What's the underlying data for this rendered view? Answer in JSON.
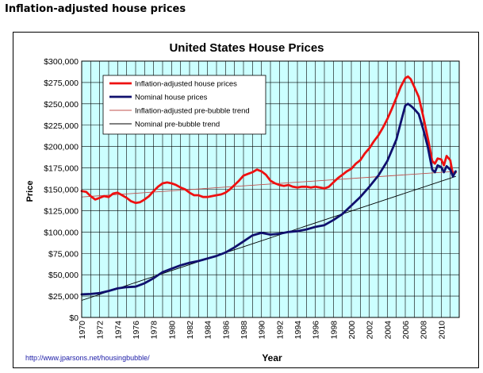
{
  "page": {
    "header": "Inflation-adjusted house prices",
    "source_link": "http://www.jparsons.net/housingbubble/"
  },
  "chart_data": {
    "type": "line",
    "title": "United States House Prices",
    "xlabel": "Year",
    "ylabel": "Price",
    "xlim": [
      1970,
      2012
    ],
    "ylim": [
      0,
      300000
    ],
    "x_ticks": [
      1970,
      1972,
      1974,
      1976,
      1978,
      1980,
      1982,
      1984,
      1986,
      1988,
      1990,
      1992,
      1994,
      1996,
      1998,
      2000,
      2002,
      2004,
      2006,
      2008,
      2010
    ],
    "y_ticks": [
      0,
      25000,
      50000,
      75000,
      100000,
      125000,
      150000,
      175000,
      200000,
      225000,
      250000,
      275000,
      300000
    ],
    "y_tick_labels": [
      "$0",
      "$25,000",
      "$50,000",
      "$75,000",
      "$100,000",
      "$125,000",
      "$150,000",
      "$175,000",
      "$200,000",
      "$225,000",
      "$250,000",
      "$275,000",
      "$300,000"
    ],
    "grid": true,
    "plot_background": "#ccffff",
    "legend_position": "top-left",
    "series": [
      {
        "name": "Inflation-adjusted house prices",
        "color": "#ee1111",
        "style": "thick",
        "points": [
          [
            1970,
            148000
          ],
          [
            1970.5,
            147000
          ],
          [
            1971,
            142000
          ],
          [
            1971.5,
            138000
          ],
          [
            1972,
            140000
          ],
          [
            1972.5,
            142000
          ],
          [
            1973,
            141000
          ],
          [
            1973.5,
            145000
          ],
          [
            1974,
            146000
          ],
          [
            1974.5,
            143000
          ],
          [
            1975,
            140000
          ],
          [
            1975.5,
            136000
          ],
          [
            1976,
            134000
          ],
          [
            1976.5,
            135000
          ],
          [
            1977,
            138000
          ],
          [
            1977.5,
            142000
          ],
          [
            1978,
            148000
          ],
          [
            1978.5,
            153000
          ],
          [
            1979,
            157000
          ],
          [
            1979.5,
            158000
          ],
          [
            1980,
            157000
          ],
          [
            1980.5,
            155000
          ],
          [
            1981,
            152000
          ],
          [
            1981.5,
            150000
          ],
          [
            1982,
            146000
          ],
          [
            1982.5,
            143000
          ],
          [
            1983,
            143000
          ],
          [
            1983.5,
            141000
          ],
          [
            1984,
            141000
          ],
          [
            1984.5,
            142000
          ],
          [
            1985,
            143000
          ],
          [
            1985.5,
            144000
          ],
          [
            1986,
            146000
          ],
          [
            1986.5,
            150000
          ],
          [
            1987,
            155000
          ],
          [
            1987.5,
            160000
          ],
          [
            1988,
            166000
          ],
          [
            1988.5,
            168000
          ],
          [
            1989,
            170000
          ],
          [
            1989.5,
            173000
          ],
          [
            1990,
            171000
          ],
          [
            1990.5,
            167000
          ],
          [
            1991,
            160000
          ],
          [
            1991.5,
            157000
          ],
          [
            1992,
            155000
          ],
          [
            1992.5,
            154000
          ],
          [
            1993,
            155000
          ],
          [
            1993.5,
            153000
          ],
          [
            1994,
            152000
          ],
          [
            1994.5,
            153000
          ],
          [
            1995,
            153000
          ],
          [
            1995.5,
            152000
          ],
          [
            1996,
            153000
          ],
          [
            1996.5,
            152000
          ],
          [
            1997,
            151000
          ],
          [
            1997.5,
            153000
          ],
          [
            1998,
            158000
          ],
          [
            1998.5,
            163000
          ],
          [
            1999,
            167000
          ],
          [
            1999.5,
            171000
          ],
          [
            2000,
            174000
          ],
          [
            2000.5,
            180000
          ],
          [
            2001,
            184000
          ],
          [
            2001.5,
            192000
          ],
          [
            2002,
            198000
          ],
          [
            2002.5,
            206000
          ],
          [
            2003,
            213000
          ],
          [
            2003.5,
            222000
          ],
          [
            2004,
            232000
          ],
          [
            2004.5,
            244000
          ],
          [
            2005,
            257000
          ],
          [
            2005.5,
            270000
          ],
          [
            2006,
            280000
          ],
          [
            2006.3,
            282000
          ],
          [
            2006.6,
            279000
          ],
          [
            2007,
            270000
          ],
          [
            2007.5,
            258000
          ],
          [
            2008,
            235000
          ],
          [
            2008.3,
            220000
          ],
          [
            2008.6,
            205000
          ],
          [
            2009,
            183000
          ],
          [
            2009.3,
            180000
          ],
          [
            2009.6,
            186000
          ],
          [
            2010,
            185000
          ],
          [
            2010.3,
            178000
          ],
          [
            2010.6,
            189000
          ],
          [
            2011,
            184000
          ],
          [
            2011.3,
            167000
          ],
          [
            2011.6,
            170000
          ]
        ]
      },
      {
        "name": "Nominal house prices",
        "color": "#10106e",
        "style": "thick",
        "points": [
          [
            1970,
            27000
          ],
          [
            1971,
            27500
          ],
          [
            1972,
            28500
          ],
          [
            1973,
            31000
          ],
          [
            1974,
            34000
          ],
          [
            1975,
            35500
          ],
          [
            1976,
            36000
          ],
          [
            1977,
            40000
          ],
          [
            1978,
            46000
          ],
          [
            1979,
            53000
          ],
          [
            1980,
            57000
          ],
          [
            1981,
            61000
          ],
          [
            1982,
            64000
          ],
          [
            1983,
            66000
          ],
          [
            1984,
            69000
          ],
          [
            1985,
            72000
          ],
          [
            1986,
            76000
          ],
          [
            1987,
            82000
          ],
          [
            1988,
            89000
          ],
          [
            1989,
            96000
          ],
          [
            1990,
            99000
          ],
          [
            1991,
            97000
          ],
          [
            1992,
            98000
          ],
          [
            1993,
            100000
          ],
          [
            1994,
            101000
          ],
          [
            1995,
            103000
          ],
          [
            1996,
            106000
          ],
          [
            1997,
            108000
          ],
          [
            1998,
            114000
          ],
          [
            1999,
            121000
          ],
          [
            2000,
            131000
          ],
          [
            2001,
            141000
          ],
          [
            2002,
            153000
          ],
          [
            2003,
            166000
          ],
          [
            2004,
            183000
          ],
          [
            2005,
            208000
          ],
          [
            2005.5,
            228000
          ],
          [
            2006,
            248000
          ],
          [
            2006.3,
            250000
          ],
          [
            2006.7,
            247000
          ],
          [
            2007,
            244000
          ],
          [
            2007.5,
            238000
          ],
          [
            2008,
            220000
          ],
          [
            2008.5,
            200000
          ],
          [
            2009,
            173000
          ],
          [
            2009.3,
            170000
          ],
          [
            2009.6,
            178000
          ],
          [
            2010,
            176000
          ],
          [
            2010.3,
            170000
          ],
          [
            2010.6,
            177000
          ],
          [
            2011,
            173000
          ],
          [
            2011.3,
            165000
          ],
          [
            2011.6,
            171000
          ]
        ]
      },
      {
        "name": "Inflation-adjusted pre-bubble trend",
        "color": "#c0504d",
        "style": "thin",
        "points": [
          [
            1970,
            141000
          ],
          [
            2011.6,
            171000
          ]
        ]
      },
      {
        "name": "Nominal pre-bubble trend",
        "color": "#000000",
        "style": "thin",
        "points": [
          [
            1970,
            20000
          ],
          [
            2011.6,
            165000
          ]
        ]
      }
    ]
  }
}
